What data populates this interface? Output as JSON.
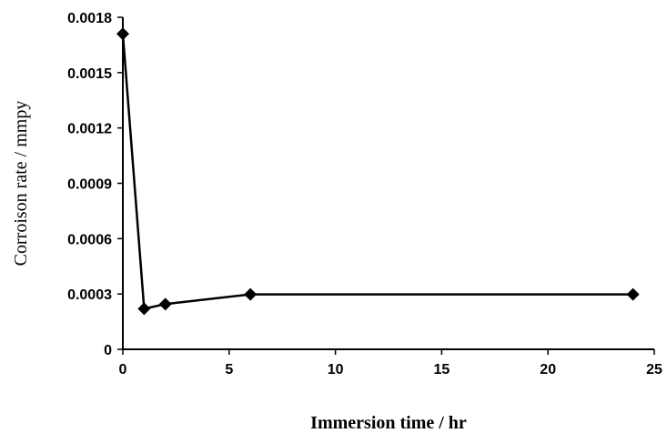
{
  "chart_data": {
    "type": "line",
    "title": "",
    "xlabel": "Immersion time / hr",
    "ylabel": "Corroison rate / mmpy",
    "xlim": [
      0,
      25
    ],
    "ylim": [
      0,
      0.0018
    ],
    "xticks": [
      0,
      5,
      10,
      15,
      20,
      25
    ],
    "yticks": [
      0,
      0.0003,
      0.0006,
      0.0009,
      0.0012,
      0.0015,
      0.0018
    ],
    "xtick_labels": [
      "0",
      "5",
      "10",
      "15",
      "20",
      "25"
    ],
    "ytick_labels": [
      "0",
      "0.0003",
      "0.0006",
      "0.0009",
      "0.0012",
      "0.0015",
      "0.0018"
    ],
    "grid": false,
    "legend": "none",
    "series": [
      {
        "marker": "diamond",
        "color": "#000000",
        "x": [
          0,
          1,
          2,
          6,
          24
        ],
        "y": [
          0.00171,
          0.00022,
          0.000245,
          0.000298,
          0.000298
        ]
      }
    ]
  }
}
